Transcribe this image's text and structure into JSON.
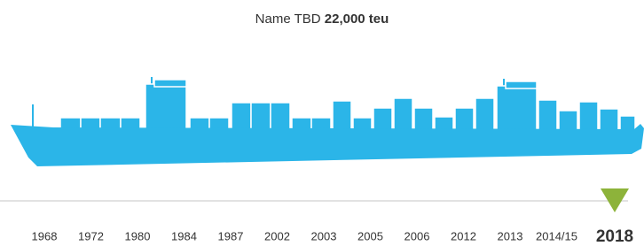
{
  "header": {
    "name": "Name TBD",
    "capacity": "22,000 teu"
  },
  "timeline": {
    "years": [
      "1968",
      "1972",
      "1980",
      "1984",
      "1987",
      "2002",
      "2003",
      "2005",
      "2006",
      "2012",
      "2013",
      "2014/15"
    ],
    "current": "2018"
  }
}
